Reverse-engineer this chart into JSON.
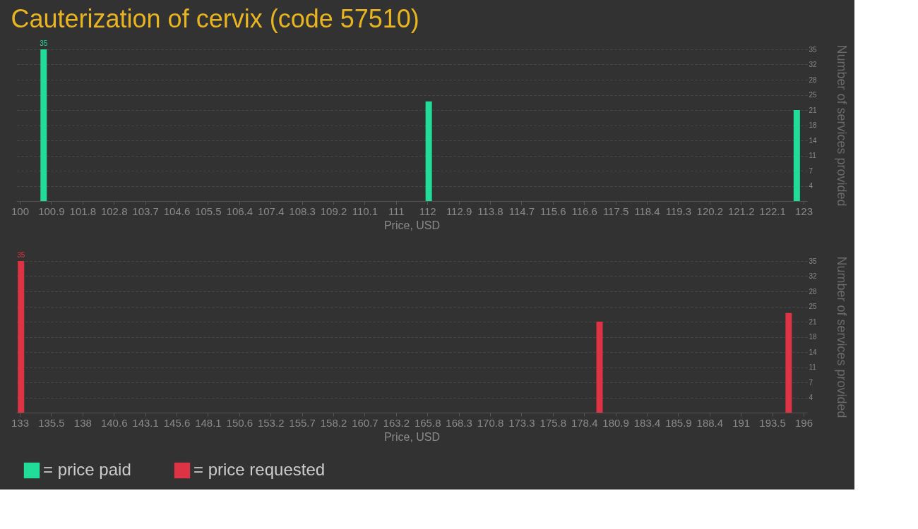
{
  "chart_data": [
    {
      "type": "bar",
      "title": "Cauterization of cervix (code 57510)",
      "xlabel": "Price, USD",
      "ylabel": "Number of services provided",
      "x": [
        100.7,
        112,
        122.8
      ],
      "series": [
        {
          "name": "= price paid",
          "color": "#22dd99",
          "values": [
            35,
            23,
            21
          ]
        }
      ],
      "value_labels": [
        "35",
        null,
        null
      ],
      "xlim": [
        100,
        123
      ],
      "xticks": [
        100,
        {
          "value": 100.92,
          "label": "100.9"
        },
        {
          "value": 101.84,
          "label": "101.8"
        },
        {
          "value": 102.76,
          "label": "102.8"
        },
        {
          "value": 103.68,
          "label": "103.7"
        },
        104.6,
        {
          "value": 105.52,
          "label": "105.5"
        },
        {
          "value": 106.44,
          "label": "106.4"
        },
        {
          "value": 107.36,
          "label": "107.4"
        },
        {
          "value": 108.28,
          "label": "108.3"
        },
        109.2,
        {
          "value": 110.12,
          "label": "110.1"
        },
        {
          "value": 111.04,
          "label": "111"
        },
        {
          "value": 111.96,
          "label": "112"
        },
        {
          "value": 112.88,
          "label": "112.9"
        },
        113.8,
        {
          "value": 114.72,
          "label": "114.7"
        },
        {
          "value": 115.64,
          "label": "115.6"
        },
        {
          "value": 116.56,
          "label": "116.6"
        },
        {
          "value": 117.48,
          "label": "117.5"
        },
        118.4,
        {
          "value": 119.32,
          "label": "119.3"
        },
        {
          "value": 120.24,
          "label": "120.2"
        },
        {
          "value": 121.16,
          "label": "121.2"
        },
        {
          "value": 122.08,
          "label": "122.1"
        },
        123
      ],
      "ylim": [
        0,
        35
      ],
      "yticks": [
        {
          "value": 3.5,
          "label": "4"
        },
        7,
        {
          "value": 10.5,
          "label": "11"
        },
        14,
        {
          "value": 17.5,
          "label": "18"
        },
        21,
        {
          "value": 24.5,
          "label": "25"
        },
        28,
        {
          "value": 31.5,
          "label": "32"
        },
        35
      ],
      "grid": "y",
      "legend": "bottom left"
    },
    {
      "type": "bar",
      "xlabel": "Price, USD",
      "ylabel": "Number of services provided",
      "x": [
        133.1,
        179.6,
        194.8
      ],
      "series": [
        {
          "name": "= price requested",
          "color": "#dd3344",
          "values": [
            35,
            21,
            23
          ]
        }
      ],
      "value_labels": [
        "35",
        null,
        null
      ],
      "xlim": [
        133,
        196
      ],
      "xticks": [
        133,
        {
          "value": 135.52,
          "label": "135.5"
        },
        {
          "value": 138.04,
          "label": "138"
        },
        {
          "value": 140.56,
          "label": "140.6"
        },
        {
          "value": 143.08,
          "label": "143.1"
        },
        145.6,
        {
          "value": 148.12,
          "label": "148.1"
        },
        {
          "value": 150.64,
          "label": "150.6"
        },
        {
          "value": 153.16,
          "label": "153.2"
        },
        {
          "value": 155.68,
          "label": "155.7"
        },
        158.2,
        {
          "value": 160.72,
          "label": "160.7"
        },
        {
          "value": 163.24,
          "label": "163.2"
        },
        {
          "value": 165.76,
          "label": "165.8"
        },
        {
          "value": 168.28,
          "label": "168.3"
        },
        170.8,
        {
          "value": 173.32,
          "label": "173.3"
        },
        {
          "value": 175.84,
          "label": "175.8"
        },
        {
          "value": 178.36,
          "label": "178.4"
        },
        {
          "value": 180.88,
          "label": "180.9"
        },
        183.4,
        {
          "value": 185.92,
          "label": "185.9"
        },
        {
          "value": 188.44,
          "label": "188.4"
        },
        {
          "value": 190.96,
          "label": "191"
        },
        {
          "value": 193.48,
          "label": "193.5"
        },
        196
      ],
      "ylim": [
        0,
        35
      ],
      "yticks": [
        {
          "value": 3.5,
          "label": "4"
        },
        7,
        {
          "value": 10.5,
          "label": "11"
        },
        14,
        {
          "value": 17.5,
          "label": "18"
        },
        21,
        {
          "value": 24.5,
          "label": "25"
        },
        28,
        {
          "value": 31.5,
          "label": "32"
        },
        35
      ],
      "grid": "y",
      "legend": "bottom left"
    }
  ]
}
